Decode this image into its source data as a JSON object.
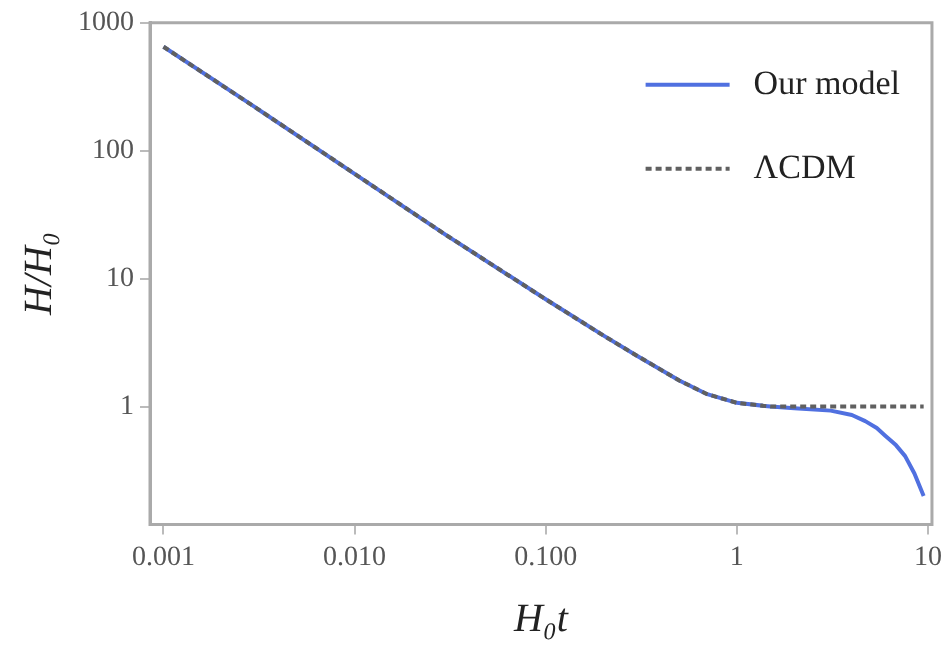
{
  "chart_data": {
    "type": "line",
    "xlabel": "H₀t",
    "ylabel": "H/H₀",
    "log": "xy",
    "xlim": [
      0.00085,
      10.5
    ],
    "ylim": [
      0.12,
      1000
    ],
    "xticks": [
      {
        "value": 0.001,
        "label": "0.001"
      },
      {
        "value": 0.01,
        "label": "0.010"
      },
      {
        "value": 0.1,
        "label": "0.100"
      },
      1,
      10
    ],
    "yticks": [
      1,
      10,
      100,
      1000
    ],
    "grid": false,
    "legend": "top right",
    "marker": "none",
    "series": [
      {
        "name": "Our model",
        "color": "#5070e0",
        "line_style": "solid",
        "x": [
          0.001,
          0.003,
          0.01,
          0.03,
          0.1,
          0.2,
          0.3,
          0.5,
          0.7,
          1,
          1.5,
          2,
          3.1,
          4,
          4.7,
          5.4,
          6,
          6.8,
          7.6,
          8.5,
          9.5
        ],
        "values": [
          650,
          220,
          66,
          22,
          6.9,
          3.6,
          2.5,
          1.6,
          1.25,
          1.07,
          1.0,
          0.97,
          0.93,
          0.86,
          0.77,
          0.68,
          0.59,
          0.5,
          0.41,
          0.3,
          0.2
        ]
      },
      {
        "name": "ΛCDM",
        "color": "#606060",
        "line_style": "dashed",
        "x": [
          0.001,
          0.003,
          0.01,
          0.03,
          0.1,
          0.2,
          0.3,
          0.5,
          0.7,
          1,
          1.5,
          2,
          4,
          9.5
        ],
        "values": [
          650,
          220,
          66,
          22,
          6.9,
          3.6,
          2.5,
          1.6,
          1.25,
          1.07,
          1.0,
          1.0,
          1.0,
          1.0
        ]
      }
    ]
  }
}
